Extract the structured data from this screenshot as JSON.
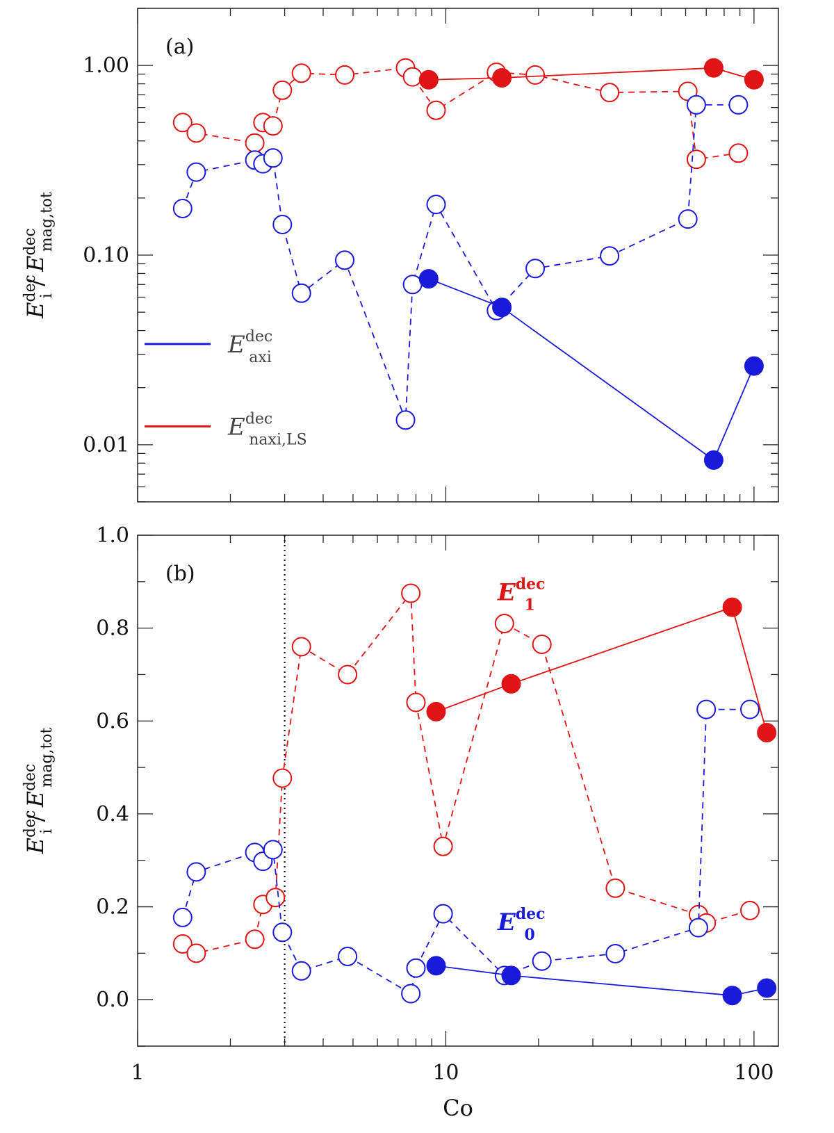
{
  "chart_data": [
    {
      "type": "line",
      "panel_label": "(a)",
      "ylabel": {
        "base": "E",
        "base_sub": "i",
        "base_sup": "dec",
        "denom": "E",
        "denom_sub": "mag,tot",
        "denom_sup": "dec"
      },
      "xscale": "log",
      "yscale": "log",
      "xlim": [
        1,
        120
      ],
      "ylim": [
        0.005,
        2.0
      ],
      "yticks": [
        {
          "value": 0.01,
          "label": "0.01"
        },
        {
          "value": 0.1,
          "label": "0.10"
        },
        {
          "value": 1.0,
          "label": "1.00"
        }
      ],
      "xticks": [],
      "legend": {
        "placement": "lower-left",
        "entries": [
          {
            "color": "#1a1adb",
            "base": "E",
            "sup": "dec",
            "sub": "axi"
          },
          {
            "color": "#e01414",
            "base": "E",
            "sup": "dec",
            "sub": "naxi,LS"
          }
        ]
      },
      "series": [
        {
          "color": "#e01414",
          "style": "dashed",
          "marker": "open",
          "x": [
            1.4,
            1.55,
            2.4,
            2.55,
            2.75,
            2.95,
            3.4,
            4.7,
            7.4,
            7.8,
            9.3,
            14.6,
            19.5,
            34,
            61,
            65,
            89
          ],
          "y": [
            0.5,
            0.44,
            0.39,
            0.5,
            0.48,
            0.74,
            0.91,
            0.89,
            0.97,
            0.87,
            0.58,
            0.92,
            0.89,
            0.72,
            0.73,
            0.32,
            0.345
          ]
        },
        {
          "color": "#1a1adb",
          "style": "dashed",
          "marker": "open",
          "x": [
            1.4,
            1.55,
            2.4,
            2.55,
            2.75,
            2.95,
            3.4,
            4.7,
            7.4,
            7.8,
            9.3,
            14.6,
            19.5,
            34,
            61,
            65,
            89
          ],
          "y": [
            0.176,
            0.274,
            0.317,
            0.303,
            0.325,
            0.145,
            0.063,
            0.094,
            0.0135,
            0.07,
            0.185,
            0.051,
            0.085,
            0.099,
            0.155,
            0.62,
            0.62
          ]
        },
        {
          "color": "#e01414",
          "style": "solid",
          "marker": "filled",
          "x": [
            8.8,
            15.2,
            74,
            100
          ],
          "y": [
            0.84,
            0.86,
            0.97,
            0.84
          ]
        },
        {
          "color": "#1a1adb",
          "style": "solid",
          "marker": "filled",
          "x": [
            8.8,
            15.2,
            74,
            100
          ],
          "y": [
            0.075,
            0.053,
            0.0083,
            0.026
          ]
        }
      ]
    },
    {
      "type": "line",
      "panel_label": "(b)",
      "ylabel": {
        "base": "E",
        "base_sub": "i",
        "base_sup": "dec",
        "denom": "E",
        "denom_sub": "mag,tot",
        "denom_sup": "dec"
      },
      "xlabel": "Co",
      "xscale": "log",
      "yscale": "linear",
      "xlim": [
        1,
        120
      ],
      "ylim": [
        -0.1,
        1.0
      ],
      "yticks": [
        {
          "value": 0.0,
          "label": "0.0"
        },
        {
          "value": 0.2,
          "label": "0.2"
        },
        {
          "value": 0.4,
          "label": "0.4"
        },
        {
          "value": 0.6,
          "label": "0.6"
        },
        {
          "value": 0.8,
          "label": "0.8"
        },
        {
          "value": 1.0,
          "label": "1.0"
        }
      ],
      "xticks": [
        {
          "value": 1,
          "label": "1"
        },
        {
          "value": 10,
          "label": "10"
        },
        {
          "value": 100,
          "label": "100"
        }
      ],
      "vline": {
        "x": 3.0,
        "style": "dotted"
      },
      "annotations": [
        {
          "color": "#e01414",
          "base": "E",
          "sup": "dec",
          "sub": "1",
          "x": 15.5,
          "y": 0.86
        },
        {
          "color": "#1a1adb",
          "base": "E",
          "sup": "dec",
          "sub": "0",
          "x": 15.5,
          "y": 0.15
        }
      ],
      "series": [
        {
          "color": "#e01414",
          "style": "dashed",
          "marker": "open",
          "x": [
            1.4,
            1.55,
            2.4,
            2.55,
            2.8,
            2.95,
            3.4,
            4.8,
            7.7,
            8.0,
            9.8,
            15.5,
            20.5,
            35.5,
            66,
            70,
            97
          ],
          "y": [
            0.12,
            0.1,
            0.13,
            0.205,
            0.22,
            0.477,
            0.76,
            0.7,
            0.875,
            0.64,
            0.33,
            0.81,
            0.765,
            0.24,
            0.183,
            0.165,
            0.192
          ]
        },
        {
          "color": "#1a1adb",
          "style": "dashed",
          "marker": "open",
          "x": [
            1.4,
            1.55,
            2.4,
            2.55,
            2.75,
            2.95,
            3.4,
            4.8,
            7.7,
            8.0,
            9.8,
            15.5,
            20.5,
            35.5,
            66,
            70,
            97
          ],
          "y": [
            0.177,
            0.275,
            0.317,
            0.298,
            0.323,
            0.145,
            0.062,
            0.093,
            0.013,
            0.068,
            0.185,
            0.052,
            0.083,
            0.099,
            0.155,
            0.625,
            0.625
          ]
        },
        {
          "color": "#e01414",
          "style": "solid",
          "marker": "filled",
          "x": [
            9.3,
            16.3,
            85,
            110
          ],
          "y": [
            0.62,
            0.68,
            0.845,
            0.575
          ]
        },
        {
          "color": "#1a1adb",
          "style": "solid",
          "marker": "filled",
          "x": [
            9.3,
            16.3,
            85,
            110
          ],
          "y": [
            0.073,
            0.052,
            0.009,
            0.025
          ]
        }
      ]
    }
  ]
}
